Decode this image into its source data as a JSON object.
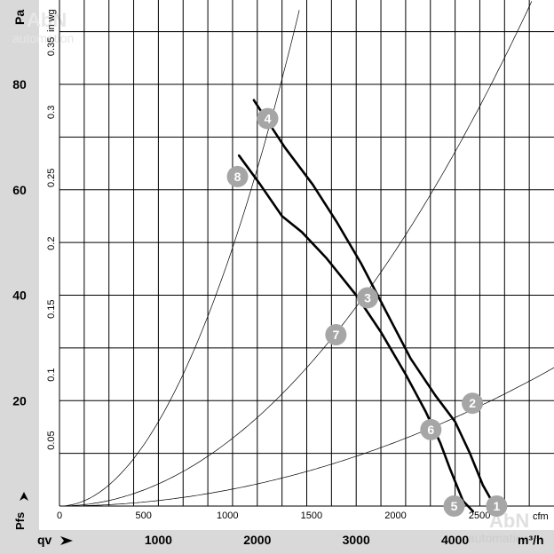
{
  "chart_data": {
    "type": "line",
    "title": "",
    "colors": {
      "band": "#d9d9d9",
      "grid": "#000000",
      "curve": "#000000",
      "marker": "#a6a6a6",
      "watermark": "#c8c8c8"
    },
    "axes": {
      "left_unit": "Pa",
      "inner_unit": "in wg",
      "pressure_symbol": "Pfs",
      "flow_symbol": "qv",
      "bottom_unit": "m³/h",
      "inner_bottom_unit": "cfm",
      "x_m3h_range": [
        0,
        5000
      ],
      "y_pa_range": [
        0,
        96
      ],
      "m3h_ticks": [
        {
          "value": 1000,
          "label": "1000"
        },
        {
          "value": 2000,
          "label": "2000"
        },
        {
          "value": 3000,
          "label": "3000"
        },
        {
          "value": 4000,
          "label": "4000"
        }
      ],
      "cfm_ticks": [
        {
          "value": 0,
          "label": "0"
        },
        {
          "value": 500,
          "label": "500"
        },
        {
          "value": 1000,
          "label": "1000"
        },
        {
          "value": 1500,
          "label": "1500"
        },
        {
          "value": 2000,
          "label": "2000"
        },
        {
          "value": 2500,
          "label": "2500"
        }
      ],
      "pa_ticks": [
        {
          "value": 20,
          "label": "20"
        },
        {
          "value": 40,
          "label": "40"
        },
        {
          "value": 60,
          "label": "60"
        },
        {
          "value": 80,
          "label": "80"
        }
      ],
      "inwg_ticks": [
        {
          "value": 0.05,
          "label": "0.05"
        },
        {
          "value": 0.1,
          "label": "0.1"
        },
        {
          "value": 0.15,
          "label": "0.15"
        },
        {
          "value": 0.2,
          "label": "0.2"
        },
        {
          "value": 0.25,
          "label": "0.25"
        },
        {
          "value": 0.3,
          "label": "0.3"
        },
        {
          "value": 0.35,
          "label": "0.35"
        }
      ],
      "grid_x_m3h": [
        250,
        500,
        750,
        1000,
        1250,
        1500,
        1750,
        2000,
        2250,
        2500,
        2750,
        3000,
        3250,
        3500,
        3750,
        4000,
        4250,
        4500,
        4750
      ],
      "grid_y_pa": [
        10,
        20,
        30,
        40,
        50,
        60,
        70,
        80,
        90
      ]
    },
    "series": [
      {
        "id": "curve-high",
        "values": [
          [
            1965,
            77
          ],
          [
            2280,
            68
          ],
          [
            2560,
            61
          ],
          [
            2800,
            54
          ],
          [
            3050,
            46
          ],
          [
            3300,
            37
          ],
          [
            3550,
            28
          ],
          [
            3800,
            21
          ],
          [
            4000,
            16
          ],
          [
            4150,
            10
          ],
          [
            4280,
            4
          ],
          [
            4400,
            0
          ]
        ]
      },
      {
        "id": "curve-low",
        "values": [
          [
            1815,
            66.5
          ],
          [
            2030,
            61
          ],
          [
            2250,
            55
          ],
          [
            2450,
            52
          ],
          [
            2700,
            47
          ],
          [
            3000,
            40
          ],
          [
            3250,
            33
          ],
          [
            3500,
            25
          ],
          [
            3700,
            18
          ],
          [
            3850,
            12
          ],
          [
            3950,
            7
          ],
          [
            4080,
            1
          ],
          [
            4180,
            -1
          ]
        ]
      }
    ],
    "system_curves": [
      {
        "id": "system-curve-1",
        "k_pa_per_m3h2": 1.6e-05
      },
      {
        "id": "system-curve-2",
        "k_pa_per_m3h2": 4.2e-06
      },
      {
        "id": "system-curve-3",
        "k_pa_per_m3h2": 1.05e-06
      }
    ],
    "points": [
      {
        "label": "1",
        "x": 4420,
        "y": 0
      },
      {
        "label": "2",
        "x": 4175,
        "y": 19.5
      },
      {
        "label": "3",
        "x": 3115,
        "y": 39.5
      },
      {
        "label": "4",
        "x": 2105,
        "y": 73.5
      },
      {
        "label": "5",
        "x": 3990,
        "y": 0
      },
      {
        "label": "6",
        "x": 3755,
        "y": 14.5
      },
      {
        "label": "7",
        "x": 2795,
        "y": 32.5
      },
      {
        "label": "8",
        "x": 1800,
        "y": 62.5
      }
    ],
    "watermark": {
      "line1": "AbN",
      "line2": "automation"
    }
  }
}
